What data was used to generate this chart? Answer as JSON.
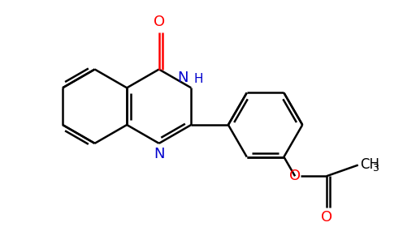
{
  "background_color": "#ffffff",
  "bond_color": "#000000",
  "nitrogen_color": "#0000cd",
  "oxygen_color": "#ff0000",
  "line_width": 1.8,
  "figsize": [
    5.12,
    2.8
  ],
  "dpi": 100,
  "xlim": [
    0,
    10
  ],
  "ylim": [
    0,
    5.5
  ]
}
